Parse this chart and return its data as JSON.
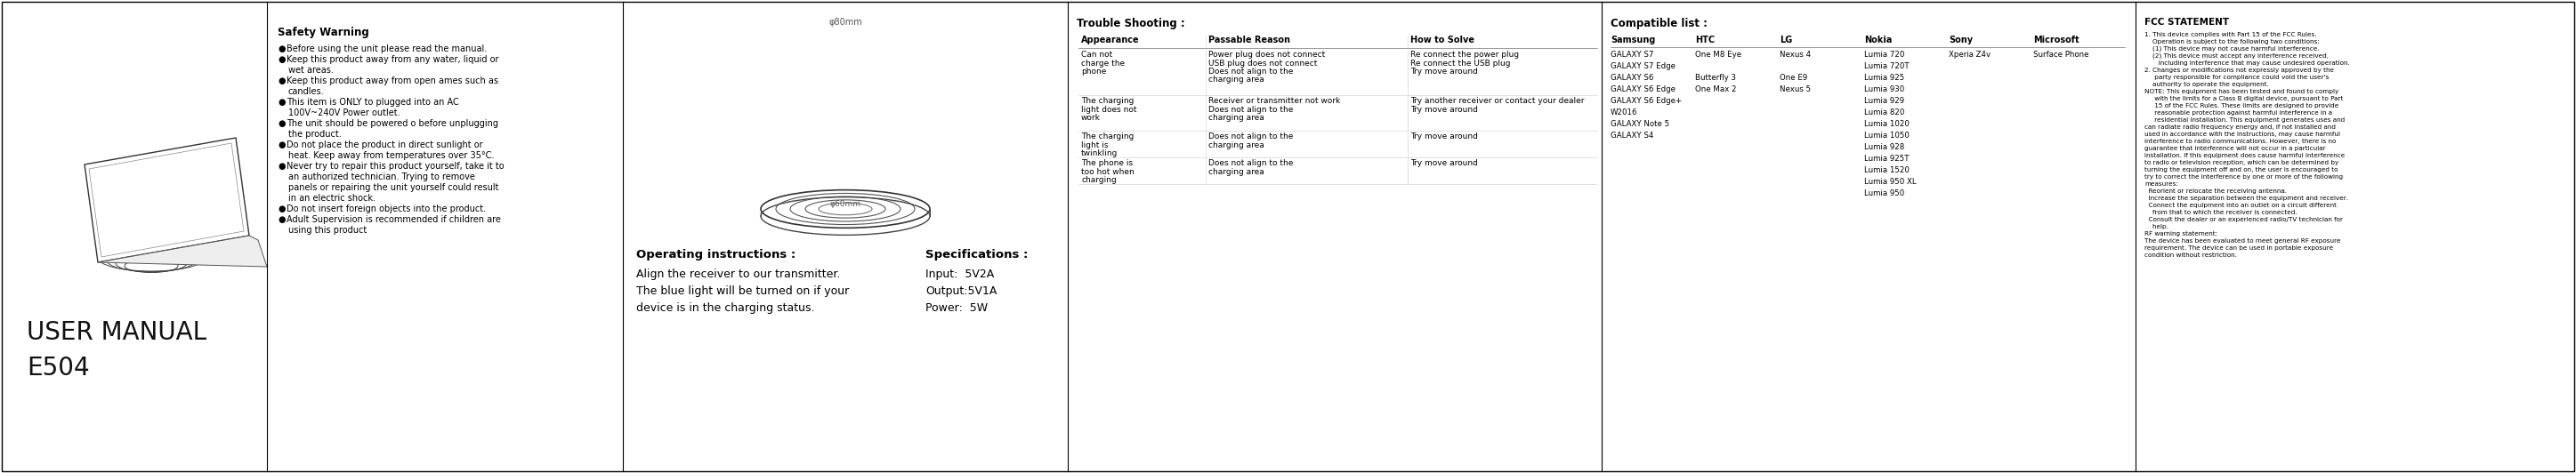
{
  "bg_color": "#ffffff",
  "safety_warning_title": "Safety Warning",
  "safety_bullets": [
    [
      "Before using the unit please read the manual."
    ],
    [
      "Keep this product away from any water, liquid or",
      "wet areas."
    ],
    [
      "Keep this product away from open ames such as",
      "candles."
    ],
    [
      "This item is ONLY to plugged into an AC",
      "100V~240V Power outlet."
    ],
    [
      "The unit should be powered o before unplugging",
      "the product."
    ],
    [
      "Do not place the product in direct sunlight or",
      "heat. Keep away from temperatures over 35°C."
    ],
    [
      "Never try to repair this product yourself, take it to",
      "an authorized technician. Trying to remove",
      "panels or repairing the unit yourself could result",
      "in an electric shock."
    ],
    [
      "Do not insert foreign objects into the product."
    ],
    [
      "Adult Supervision is recommended if children are",
      "using this product"
    ]
  ],
  "operating_title": "Operating instructions :",
  "operating_lines": [
    "Align the receiver to our transmitter.",
    "The blue light will be turned on if your",
    "device is in the charging status."
  ],
  "specs_title": "Specifications :",
  "specs_lines": [
    "Input:  5V2A",
    "Output:5V1A",
    "Power:  5W"
  ],
  "trouble_title": "Trouble Shooting :",
  "trouble_headers": [
    "Appearance",
    "Passable Reason",
    "How to Solve"
  ],
  "trouble_rows": [
    [
      "Can not\ncharge the\nphone",
      "Power plug does not connect\nUSB plug does not connect\nDoes not align to the\ncharging area",
      "Re connect the power plug\nRe connect the USB plug\nTry move around"
    ],
    [
      "The charging\nlight does not\nwork",
      "Receiver or transmitter not work\nDoes not align to the\ncharging area",
      "Try another receiver or contact your dealer\nTry move around"
    ],
    [
      "The charging\nlight is\ntwinkling",
      "Does not align to the\ncharging area",
      "Try move around"
    ],
    [
      "The phone is\ntoo hot when\ncharging",
      "Does not align to the\ncharging area",
      "Try move around"
    ]
  ],
  "compat_title": "Compatible list :",
  "compat_headers": [
    "Samsung",
    "HTC",
    "LG",
    "Nokia",
    "Sony",
    "Microsoft"
  ],
  "compat_rows": [
    [
      "GALAXY S7",
      "One M8 Eye",
      "Nexus 4",
      "Lumia 720",
      "Xperia Z4v",
      "Surface Phone"
    ],
    [
      "GALAXY S7 Edge",
      "",
      "",
      "Lumia 720T",
      "",
      ""
    ],
    [
      "GALAXY S6",
      "Butterfly 3",
      "One E9",
      "Lumia 925",
      "",
      ""
    ],
    [
      "GALAXY S6 Edge",
      "One Max 2",
      "Nexus 5",
      "Lumia 930",
      "",
      ""
    ],
    [
      "GALAXY S6 Edge+",
      "",
      "",
      "Lumia 929",
      "",
      ""
    ],
    [
      "W2016",
      "",
      "",
      "Lumia 820",
      "",
      ""
    ],
    [
      "GALAXY Note 5",
      "",
      "",
      "Lumia 1020",
      "",
      ""
    ],
    [
      "GALAXY S4",
      "",
      "",
      "Lumia 1050",
      "",
      ""
    ],
    [
      "",
      "",
      "",
      "Lumia 928",
      "",
      ""
    ],
    [
      "",
      "",
      "",
      "Lumia 925T",
      "",
      ""
    ],
    [
      "",
      "",
      "",
      "Lumia 1520",
      "",
      ""
    ],
    [
      "",
      "",
      "",
      "Lumia 950 XL",
      "",
      ""
    ],
    [
      "",
      "",
      "",
      "Lumia 950",
      "",
      ""
    ]
  ],
  "fcc_title": "FCC STATEMENT",
  "fcc_lines": [
    "1. This device complies with Part 15 of the FCC Rules.",
    "    Operation is subject to the following two conditions:",
    "    (1) This device may not cause harmful interference.",
    "    (2) This device must accept any interference received,",
    "       including interference that may cause undesired operation.",
    "2. Changes or modifications not expressly approved by the",
    "     party responsible for compliance could void the user's",
    "    authority to operate the equipment.",
    "NOTE: This equipment has been tested and found to comply",
    "     with the limits for a Class B digital device, pursuant to Part",
    "     15 of the FCC Rules. These limits are designed to provide",
    "     reasonable protection against harmful interference in a",
    "     residential installation. This equipment generates uses and",
    "can radiate radio frequency energy and, if not installed and",
    "used in accordance with the instructions, may cause harmful",
    "interference to radio communications. However, there is no",
    "guarantee that interference will not occur in a particular",
    "installation. If this equipment does cause harmful interference",
    "to radio or television reception, which can be determined by",
    "turning the equipment off and on, the user is encouraged to",
    "try to correct the interference by one or more of the following",
    "measures:",
    "  Reorient or relocate the receiving antenna.",
    "  Increase the separation between the equipment and receiver.",
    "  Connect the equipment into an outlet on a circuit different",
    "    from that to which the receiver is connected.",
    "  Consult the dealer or an experienced radio/TV technician for",
    "    help.",
    "RF warning statement:",
    "The device has been evaluated to meet general RF exposure",
    "requirement. The device can be used in portable exposure",
    "condition without restriction."
  ],
  "dividers_x": [
    300,
    700,
    1200,
    1800,
    2400
  ]
}
